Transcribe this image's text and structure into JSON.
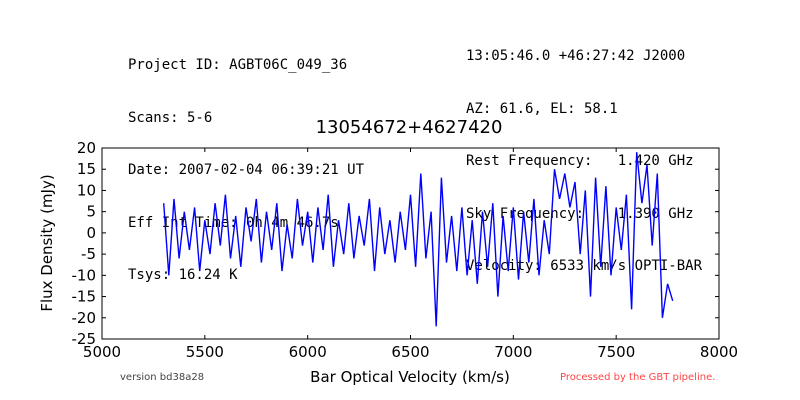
{
  "header": {
    "left_lines": [
      "Project ID: AGBT06C_049_36",
      "Scans: 5-6",
      "Date: 2007-02-04 06:39:21 UT",
      "Eff Int Time: 0h 4m 46.7s",
      "Tsys: 16.24 K"
    ],
    "right_lines": [
      "13:05:46.0 +46:27:42 J2000",
      "AZ: 61.6, EL: 58.1",
      "Rest Frequency:   1.420 GHz",
      "Sky Frequency:    1.390 GHz",
      "Velocity: 6533 km/s OPTI-BAR"
    ]
  },
  "footer": {
    "version": "version bd38a28",
    "pipeline": "Processed by the GBT pipeline.",
    "pipeline_color": "#ff4444"
  },
  "chart_data": {
    "type": "line",
    "title": "13054672+4627420",
    "xlabel": "Bar Optical Velocity (km/s)",
    "ylabel": "Flux Density (mJy)",
    "xlim": [
      5000,
      8000
    ],
    "ylim": [
      -25,
      20
    ],
    "xticks": [
      5000,
      5500,
      6000,
      6500,
      7000,
      7500,
      8000
    ],
    "yticks": [
      -25,
      -20,
      -15,
      -10,
      -5,
      0,
      5,
      10,
      15,
      20
    ],
    "grid": false,
    "line_color": "#0000ff",
    "series": [
      {
        "x": [
          5300,
          5325,
          5350,
          5375,
          5400,
          5425,
          5450,
          5475,
          5500,
          5525,
          5550,
          5575,
          5600,
          5625,
          5650,
          5675,
          5700,
          5725,
          5750,
          5775,
          5800,
          5825,
          5850,
          5875,
          5900,
          5925,
          5950,
          5975,
          6000,
          6025,
          6050,
          6075,
          6100,
          6125,
          6150,
          6175,
          6200,
          6225,
          6250,
          6275,
          6300,
          6325,
          6350,
          6375,
          6400,
          6425,
          6450,
          6475,
          6500,
          6525,
          6550,
          6575,
          6600,
          6625,
          6650,
          6675,
          6700,
          6725,
          6750,
          6775,
          6800,
          6825,
          6850,
          6875,
          6900,
          6925,
          6950,
          6975,
          7000,
          7025,
          7050,
          7075,
          7100,
          7125,
          7150,
          7175,
          7200,
          7225,
          7250,
          7275,
          7300,
          7325,
          7350,
          7375,
          7400,
          7425,
          7450,
          7475,
          7500,
          7525,
          7550,
          7575,
          7600,
          7625,
          7650,
          7675,
          7700,
          7725,
          7750,
          7775
        ],
        "y": [
          7,
          -10,
          8,
          -6,
          5,
          -4,
          6,
          -9,
          3,
          -5,
          7,
          -3,
          9,
          -6,
          4,
          -8,
          6,
          -2,
          8,
          -7,
          5,
          -4,
          7,
          -9,
          2,
          -6,
          8,
          -3,
          5,
          -7,
          6,
          -4,
          9,
          -8,
          3,
          -5,
          7,
          -6,
          4,
          -3,
          8,
          -9,
          6,
          -5,
          3,
          -7,
          5,
          -4,
          9,
          -8,
          14,
          -6,
          5,
          -22,
          13,
          -7,
          4,
          -9,
          6,
          -10,
          3,
          -12,
          5,
          -8,
          7,
          -15,
          4,
          -9,
          6,
          -11,
          5,
          -7,
          8,
          -10,
          3,
          -5,
          15,
          8,
          14,
          6,
          12,
          -5,
          10,
          -15,
          13,
          -8,
          11,
          -10,
          6,
          -4,
          9,
          -18,
          19,
          7,
          16,
          -3,
          14,
          -20,
          -12,
          -16
        ]
      }
    ]
  }
}
